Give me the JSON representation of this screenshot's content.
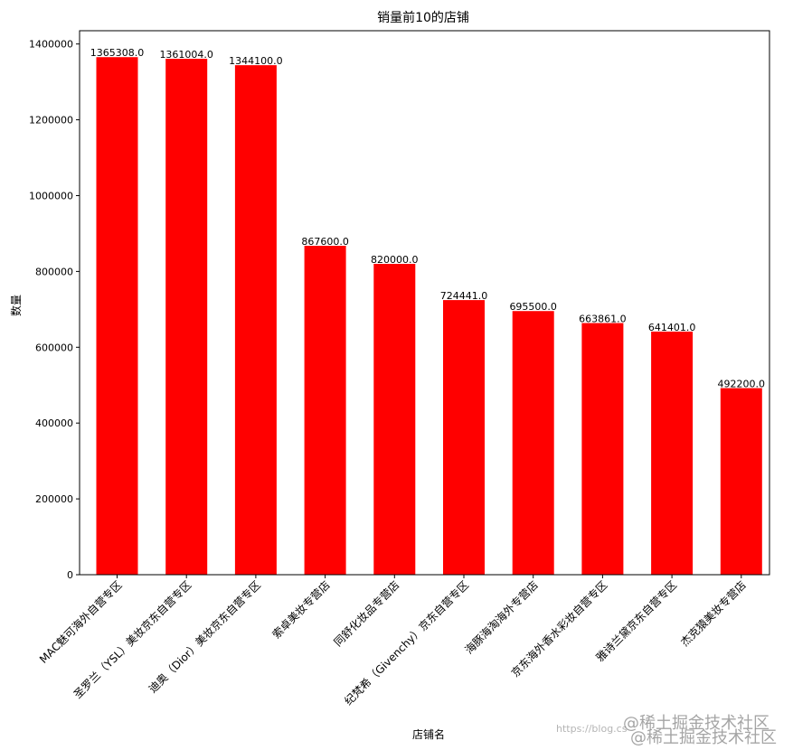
{
  "chart_data": {
    "type": "bar",
    "title": "销量前10的店铺",
    "xlabel": "店铺名",
    "ylabel": "数量",
    "ylim": [
      0,
      1400000
    ],
    "yticks": [
      0,
      200000,
      400000,
      600000,
      800000,
      1000000,
      1200000,
      1400000
    ],
    "grid": false,
    "bar_color": "#ff0000",
    "categories": [
      "MAC魅可海外自营专区",
      "圣罗兰（YSL）美妆京东自营专区",
      "迪奥（Dior）美妆京东自营专区",
      "索卓美妆专营店",
      "同舒化妆品专营店",
      "纪梵希（Givenchy）京东自营专区",
      "海豚海淘海外专营店",
      "京东海外香水彩妆自营专区",
      "雅诗兰黛京东自营专区",
      "杰克猿美妆专营店"
    ],
    "values": [
      1365308,
      1361004,
      1344100,
      867600,
      820000,
      724441,
      695500,
      663861,
      641401,
      492200
    ],
    "value_labels": [
      "1365308.0",
      "1361004.0",
      "1344100.0",
      "867600.0",
      "820000.0",
      "724441.0",
      "695500.0",
      "663861.0",
      "641401.0",
      "492200.0"
    ]
  },
  "watermark": {
    "line1": "@稀土掘金技术社区",
    "line2": "@稀土掘金技术社区",
    "url": "https://blog.cs"
  }
}
